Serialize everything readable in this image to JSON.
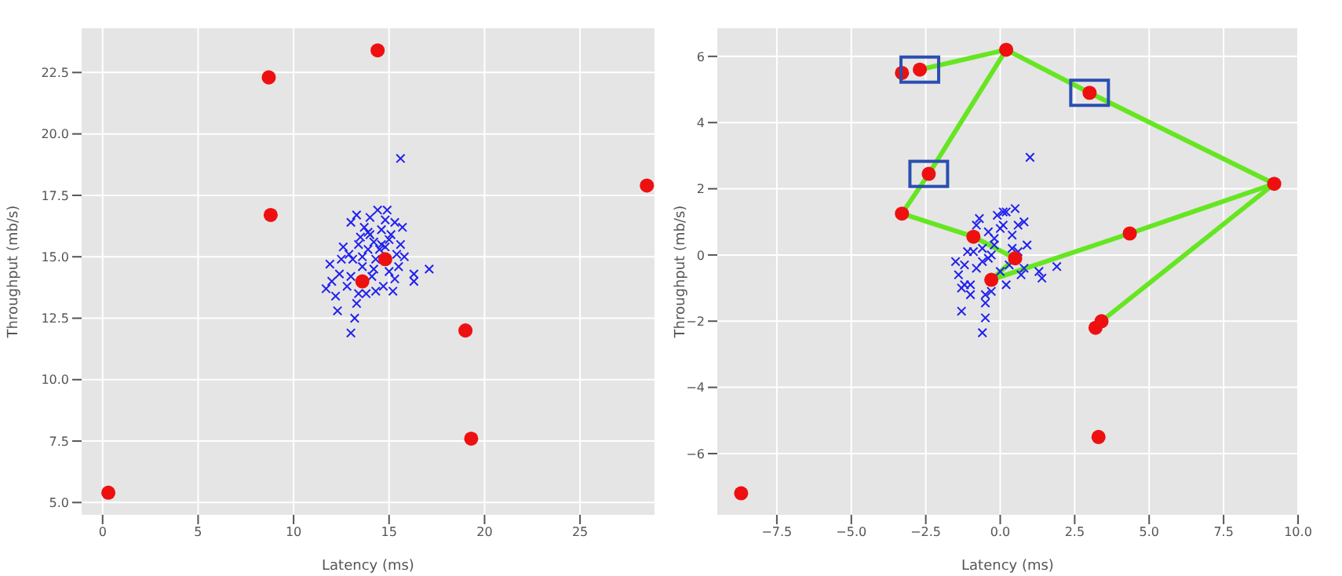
{
  "chart_data": [
    {
      "type": "scatter",
      "xlabel": "Latency (ms)",
      "ylabel": "Throughput (mb/s)",
      "xlim": [
        -1.1,
        28.9
      ],
      "ylim": [
        4.5,
        24.3
      ],
      "xticks": [
        0,
        5,
        10,
        15,
        20,
        25
      ],
      "yticks": [
        {
          "value": 5,
          "label": "5.0"
        },
        {
          "value": 7.5,
          "label": "7.5"
        },
        {
          "value": 10,
          "label": "10.0"
        },
        {
          "value": 12.5,
          "label": "12.5"
        },
        {
          "value": 15,
          "label": "15.0"
        },
        {
          "value": 17.5,
          "label": "17.5"
        },
        {
          "value": 20,
          "label": "20.0"
        },
        {
          "value": 22.5,
          "label": "22.5"
        }
      ],
      "grid": true,
      "series": [
        {
          "color": "#2020ee",
          "marker": "cross",
          "x": [
            15.6,
            17.1,
            16.3,
            16.3,
            13.0,
            12.3,
            13.2,
            13.3,
            11.7,
            11.9,
            12.0,
            12.2,
            12.4,
            12.6,
            12.8,
            13.0,
            13.1,
            13.3,
            13.4,
            13.5,
            13.6,
            13.7,
            13.8,
            13.9,
            14.0,
            14.1,
            14.2,
            14.3,
            14.4,
            14.5,
            14.6,
            14.7,
            14.8,
            14.9,
            15.0,
            15.1,
            15.2,
            15.3,
            15.4,
            15.5,
            15.7,
            15.8,
            12.5,
            13.0,
            13.6,
            14.0,
            14.3,
            14.8,
            15.3,
            13.9,
            14.6,
            15.0,
            12.9,
            13.4,
            14.2,
            15.6
          ],
          "values": [
            19.0,
            14.5,
            14.3,
            14.0,
            11.9,
            12.8,
            12.5,
            13.1,
            13.7,
            14.7,
            14.0,
            13.4,
            14.3,
            15.4,
            13.8,
            16.4,
            14.9,
            16.7,
            13.5,
            15.8,
            14.6,
            16.2,
            13.5,
            15.3,
            16.6,
            14.2,
            15.6,
            13.6,
            16.9,
            15.3,
            16.1,
            13.8,
            15.4,
            16.9,
            14.4,
            15.9,
            13.6,
            16.4,
            15.1,
            14.6,
            16.2,
            15.0,
            14.9,
            14.2,
            15.0,
            15.9,
            14.9,
            16.5,
            14.1,
            16.0,
            15.5,
            15.7,
            15.1,
            15.5,
            14.5,
            15.5
          ]
        },
        {
          "color": "#ee1010",
          "marker": "circle",
          "x": [
            0.3,
            8.7,
            8.8,
            14.4,
            13.6,
            14.8,
            19.0,
            19.3,
            28.5
          ],
          "values": [
            5.4,
            22.3,
            16.7,
            23.4,
            14.0,
            14.9,
            12.0,
            7.6,
            17.9
          ]
        }
      ]
    },
    {
      "type": "scatter",
      "xlabel": "Latency (ms)",
      "ylabel": "Throughput (mb/s)",
      "xlim": [
        -9.5,
        10
      ],
      "ylim": [
        -7.85,
        6.85
      ],
      "xticks": [
        {
          "value": -7.5,
          "label": "−7.5"
        },
        {
          "value": -5,
          "label": "−5.0"
        },
        {
          "value": -2.5,
          "label": "−2.5"
        },
        {
          "value": 0,
          "label": "0.0"
        },
        {
          "value": 2.5,
          "label": "2.5"
        },
        {
          "value": 5,
          "label": "5.0"
        },
        {
          "value": 7.5,
          "label": "7.5"
        },
        {
          "value": 10,
          "label": "10.0"
        }
      ],
      "yticks": [
        {
          "value": -6,
          "label": "−6"
        },
        {
          "value": -4,
          "label": "−4"
        },
        {
          "value": -2,
          "label": "−2"
        },
        0,
        2,
        4,
        6
      ],
      "grid": true,
      "series": [
        {
          "color": "#2020ee",
          "marker": "cross",
          "x": [
            1.0,
            1.9,
            1.4,
            1.3,
            -0.6,
            -1.3,
            -0.5,
            -0.5,
            -1.5,
            -1.4,
            -1.3,
            -1.2,
            -1.1,
            -1.0,
            -0.9,
            -0.8,
            -0.7,
            -0.6,
            -0.5,
            -0.4,
            -0.3,
            -0.2,
            -0.1,
            0.0,
            0.1,
            0.2,
            0.3,
            0.4,
            0.5,
            0.6,
            0.7,
            0.8,
            0.9,
            -1.0,
            -0.6,
            -0.2,
            0.2,
            0.6,
            -0.8,
            0.0,
            0.4,
            -0.4,
            0.8,
            -1.2,
            -0.3,
            0.1
          ],
          "values": [
            2.95,
            -0.35,
            -0.7,
            -0.5,
            -2.35,
            -1.7,
            -1.9,
            -1.45,
            -0.2,
            -0.6,
            -1.0,
            -0.3,
            0.1,
            -0.9,
            0.1,
            -0.4,
            1.1,
            0.2,
            -1.2,
            0.7,
            -1.1,
            0.3,
            1.2,
            -0.5,
            0.9,
            1.3,
            -0.3,
            0.6,
            1.4,
            0.1,
            -0.6,
            1.0,
            0.3,
            -1.2,
            -0.2,
            0.5,
            -0.9,
            0.9,
            0.9,
            0.8,
            0.2,
            -0.1,
            -0.4,
            -0.9,
            0.0,
            1.3
          ]
        },
        {
          "color": "#ee1010",
          "marker": "circle",
          "x": [
            -2.7,
            3.0,
            -2.4,
            -8.7,
            -3.3,
            0.2,
            9.2,
            -3.3,
            4.35,
            3.4,
            3.2,
            3.3,
            -0.9,
            0.5,
            -0.3
          ],
          "values": [
            5.6,
            4.9,
            2.45,
            -7.2,
            5.5,
            6.2,
            2.15,
            1.25,
            0.65,
            -2.0,
            -2.2,
            -5.5,
            0.55,
            -0.1,
            -0.75
          ]
        },
        {
          "type": "line",
          "color": "#66e622",
          "marker": "none",
          "x": [
            -2.7,
            0.2,
            3.0,
            9.2,
            3.4
          ],
          "values": [
            5.6,
            6.2,
            4.9,
            2.15,
            -2.0
          ]
        },
        {
          "type": "line",
          "color": "#66e622",
          "marker": "none",
          "x": [
            0.2,
            -2.4,
            -3.3,
            -0.9,
            0.5,
            -0.3,
            4.35,
            9.2
          ],
          "values": [
            6.2,
            2.45,
            1.25,
            0.55,
            -0.1,
            -0.75,
            0.65,
            2.15
          ]
        }
      ]
    }
  ]
}
